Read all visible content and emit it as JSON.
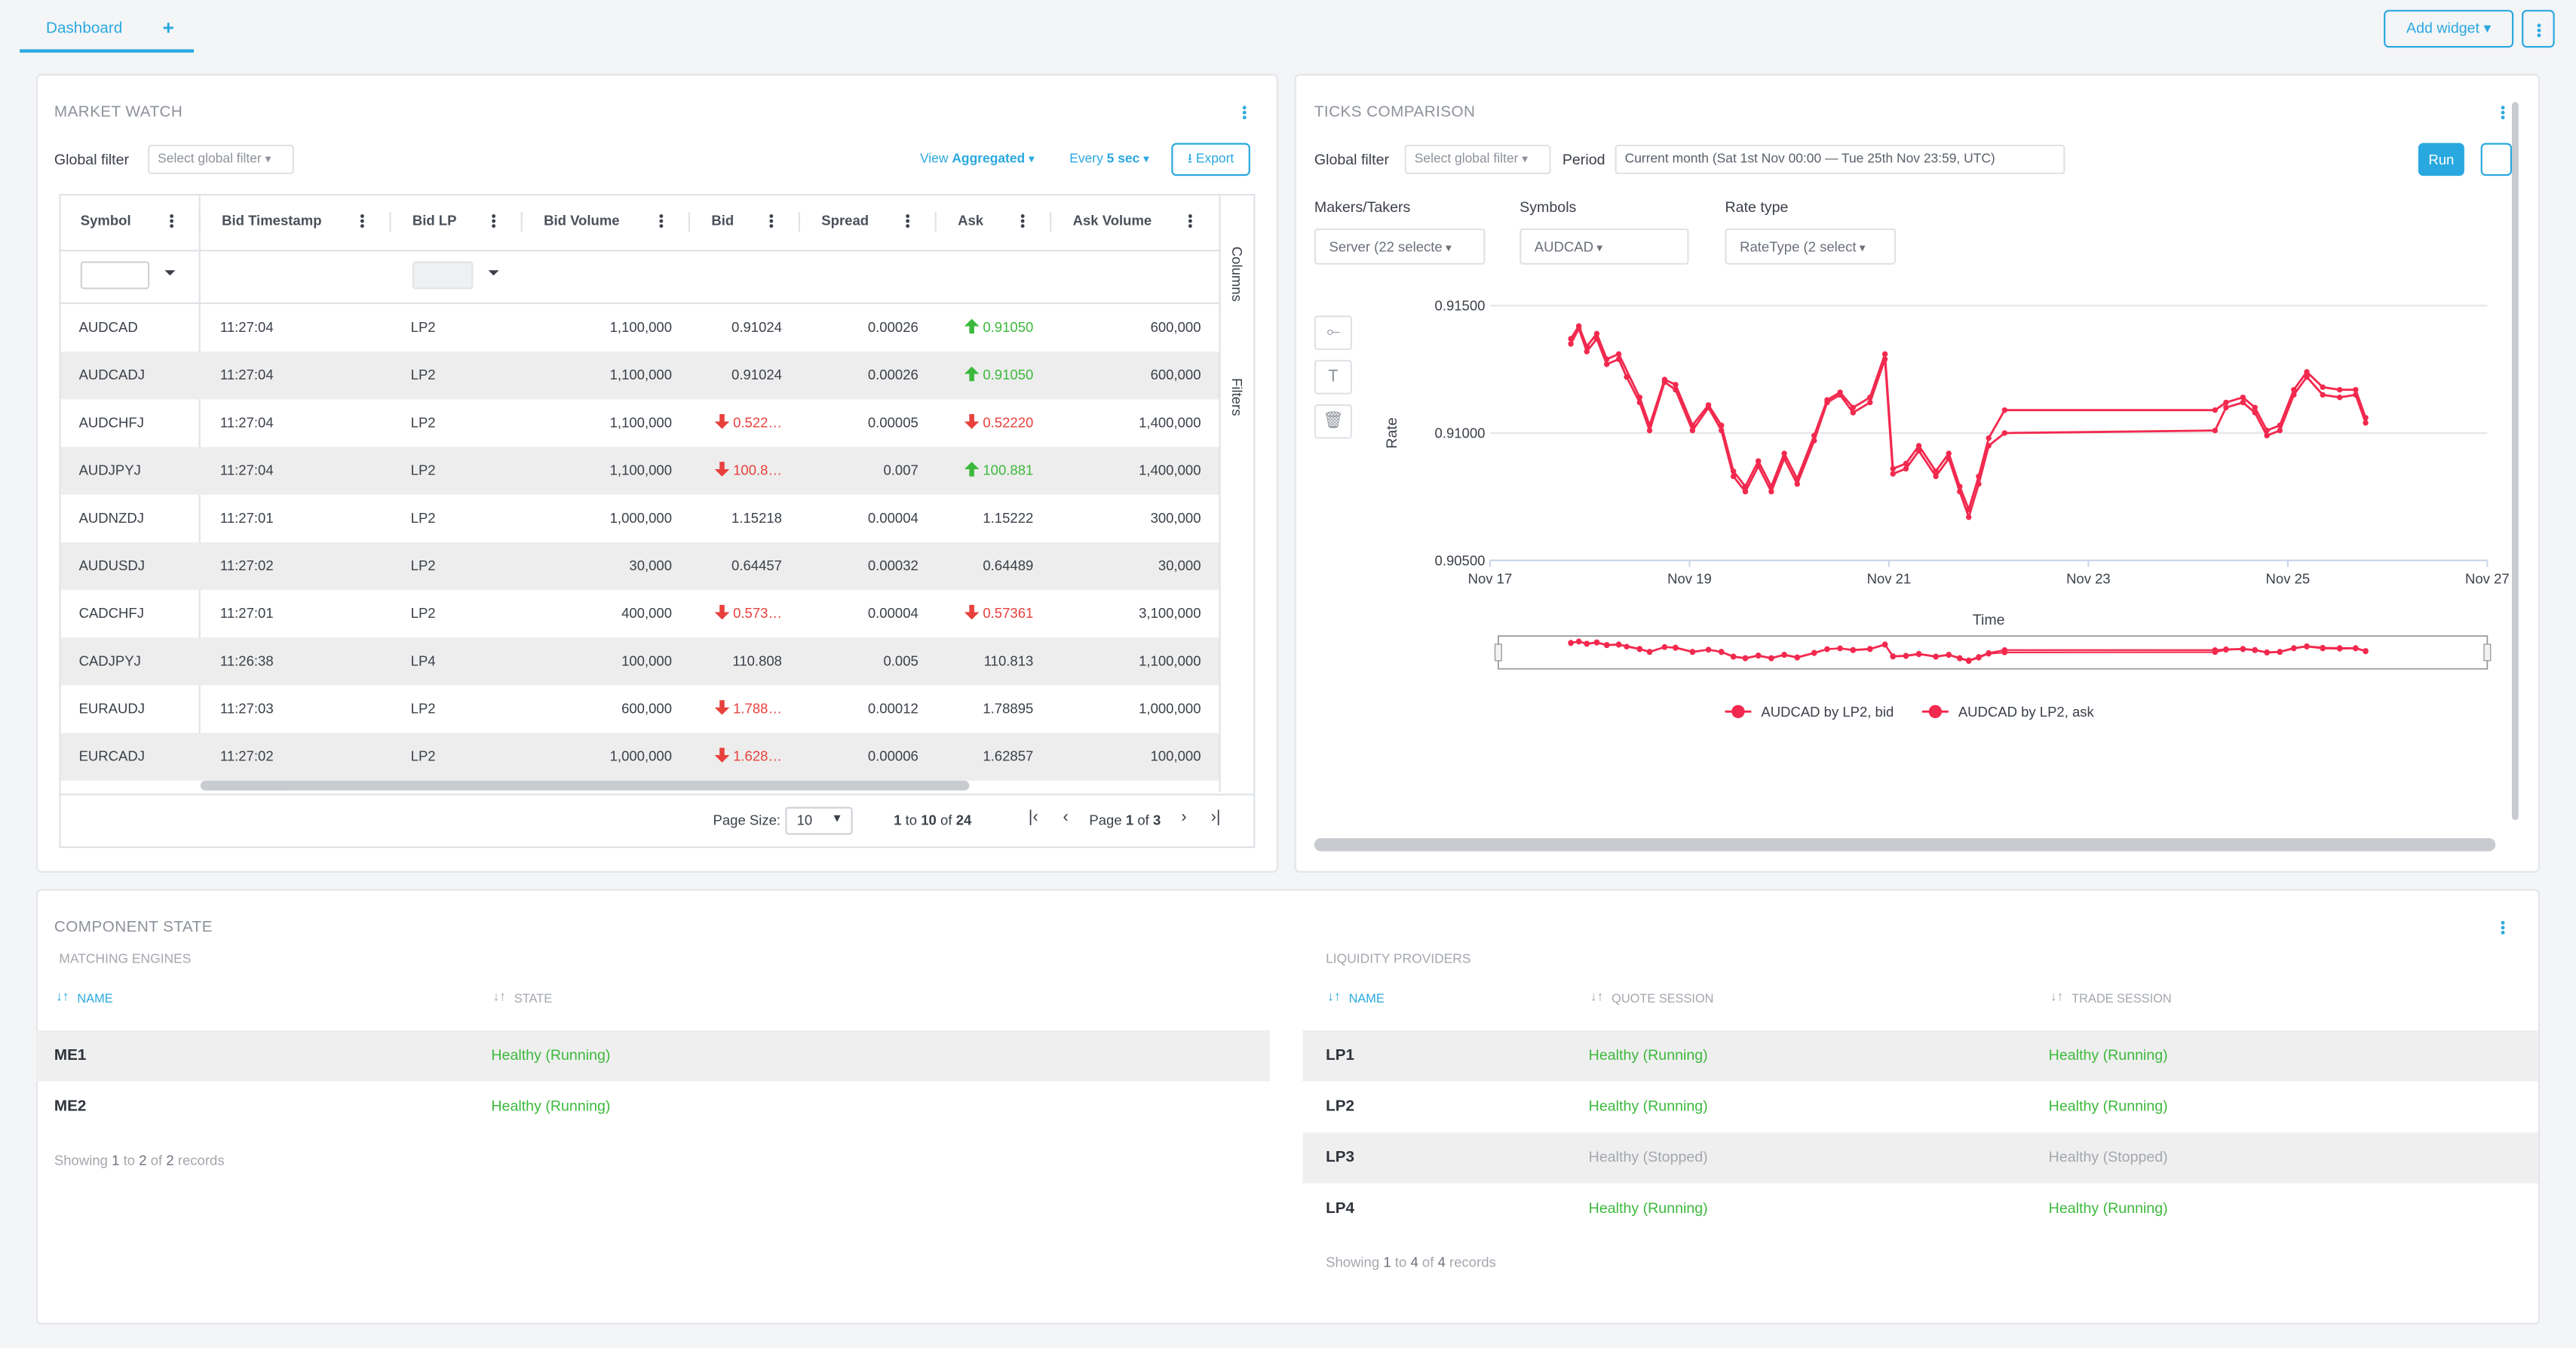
{
  "tabs": {
    "active": "Dashboard",
    "add": "+"
  },
  "toolbar": {
    "add_widget": "Add widget"
  },
  "market_watch": {
    "title": "MARKET WATCH",
    "global_filter_label": "Global filter",
    "global_filter_placeholder": "Select global filter",
    "view_label": "View",
    "view_value": "Aggregated",
    "every_label": "Every",
    "every_value": "5 sec",
    "export": "Export",
    "columns": [
      "Symbol",
      "Bid Timestamp",
      "Bid LP",
      "Bid Volume",
      "Bid",
      "Spread",
      "Ask",
      "Ask Volume"
    ],
    "rows": [
      [
        "AUDCAD",
        "11:27:04",
        "LP2",
        "1,100,000",
        "0.91024",
        "0.00026",
        "0.91050",
        "600,000"
      ],
      [
        "AUDCADJ",
        "11:27:04",
        "LP2",
        "1,100,000",
        "0.91024",
        "0.00026",
        "0.91050",
        "600,000"
      ],
      [
        "AUDCHFJ",
        "11:27:04",
        "LP2",
        "1,100,000",
        "0.522…",
        "0.00005",
        "0.52220",
        "1,400,000"
      ],
      [
        "AUDJPYJ",
        "11:27:04",
        "LP2",
        "1,100,000",
        "100.8…",
        "0.007",
        "100.881",
        "1,400,000"
      ],
      [
        "AUDNZDJ",
        "11:27:01",
        "LP2",
        "1,000,000",
        "1.15218",
        "0.00004",
        "1.15222",
        "300,000"
      ],
      [
        "AUDUSDJ",
        "11:27:02",
        "LP2",
        "30,000",
        "0.64457",
        "0.00032",
        "0.64489",
        "30,000"
      ],
      [
        "CADCHFJ",
        "11:27:01",
        "LP2",
        "400,000",
        "0.573…",
        "0.00004",
        "0.57361",
        "3,100,000"
      ],
      [
        "CADJPYJ",
        "11:26:38",
        "LP4",
        "100,000",
        "110.808",
        "0.005",
        "110.813",
        "1,100,000"
      ],
      [
        "EURAUDJ",
        "11:27:03",
        "LP2",
        "600,000",
        "1.788…",
        "0.00012",
        "1.78895",
        "1,000,000"
      ],
      [
        "EURCADJ",
        "11:27:02",
        "LP2",
        "1,000,000",
        "1.628…",
        "0.00006",
        "1.62857",
        "100,000"
      ]
    ],
    "bid_trend": [
      null,
      null,
      "down",
      "down",
      null,
      null,
      "down",
      null,
      "down",
      "down"
    ],
    "ask_trend": [
      "up",
      "up",
      "down",
      "up",
      null,
      null,
      "down",
      null,
      null,
      null
    ],
    "trend_colors": {
      "up": "#3cb93c",
      "down": "#e8413c"
    },
    "side_panel": [
      "Columns",
      "Filters"
    ],
    "page_size_label": "Page Size:",
    "page_size": "10",
    "range": {
      "start": 1,
      "to": "to",
      "end": 10,
      "of": "of",
      "total": 24
    },
    "page": {
      "label": "Page",
      "current": 1,
      "of": "of",
      "total": 3
    }
  },
  "ticks_comparison": {
    "title": "TICKS COMPARISON",
    "global_filter_label": "Global filter",
    "global_filter_placeholder": "Select global filter",
    "period_label": "Period",
    "period_value": "Current month (Sat 1st Nov 00:00 — Tue 25th Nov 23:59, UTC)",
    "run": "Run",
    "makers_label": "Makers/Takers",
    "makers_value": "Server (22 selecte",
    "symbols_label": "Symbols",
    "symbols_value": "AUDCAD",
    "rate_label": "Rate type",
    "rate_value": "RateType (2 select"
  },
  "chart_data": {
    "type": "line",
    "y_label": "Rate",
    "x_label": "Time",
    "xlim": [
      17,
      27
    ],
    "xticks": [
      {
        "value": 17,
        "label": "Nov 17"
      },
      {
        "value": 19,
        "label": "Nov 19"
      },
      {
        "value": 21,
        "label": "Nov 21"
      },
      {
        "value": 23,
        "label": "Nov 23"
      },
      {
        "value": 25,
        "label": "Nov 25"
      },
      {
        "value": 27,
        "label": "Nov 27"
      }
    ],
    "ylim": [
      0.905,
      0.915
    ],
    "yticks": [
      {
        "value": 0.905,
        "label": "0.90500"
      },
      {
        "value": 0.91,
        "label": "0.91000"
      },
      {
        "value": 0.915,
        "label": "0.91500"
      }
    ],
    "grid": true,
    "series": [
      {
        "name": "AUDCAD by LP2, bid",
        "color": "#f2294e",
        "x": [
          17.81,
          17.89,
          17.97,
          18.07,
          18.17,
          18.29,
          18.37,
          18.5,
          18.6,
          18.75,
          18.86,
          19.03,
          19.19,
          19.32,
          19.44,
          19.56,
          19.69,
          19.82,
          19.95,
          20.08,
          20.25,
          20.38,
          20.51,
          20.64,
          20.81,
          20.96,
          21.04,
          21.17,
          21.3,
          21.47,
          21.6,
          21.71,
          21.8,
          21.9,
          22.0,
          22.16,
          24.27,
          24.38,
          24.55,
          24.67,
          24.79,
          24.92,
          25.06,
          25.19,
          25.35,
          25.52,
          25.68,
          25.78
        ],
        "values": [
          0.9135,
          0.9141,
          0.9132,
          0.9137,
          0.9127,
          0.9129,
          0.9122,
          0.9112,
          0.9101,
          0.912,
          0.9117,
          0.9101,
          0.911,
          0.9101,
          0.9083,
          0.9077,
          0.9087,
          0.9077,
          0.909,
          0.908,
          0.9097,
          0.9112,
          0.9115,
          0.9108,
          0.9112,
          0.9129,
          0.9084,
          0.9086,
          0.9093,
          0.9083,
          0.909,
          0.9077,
          0.9067,
          0.908,
          0.9095,
          0.91,
          0.9101,
          0.911,
          0.9112,
          0.9108,
          0.9099,
          0.9101,
          0.9115,
          0.9122,
          0.9115,
          0.9114,
          0.9115,
          0.9104
        ]
      },
      {
        "name": "AUDCAD by LP2, ask",
        "color": "#f2294e",
        "x": [
          17.81,
          17.89,
          17.97,
          18.07,
          18.17,
          18.29,
          18.5,
          18.6,
          18.75,
          18.86,
          19.03,
          19.19,
          19.32,
          19.44,
          19.56,
          19.69,
          19.82,
          19.95,
          20.08,
          20.25,
          20.38,
          20.51,
          20.64,
          20.81,
          20.96,
          21.04,
          21.17,
          21.3,
          21.47,
          21.6,
          21.71,
          21.8,
          21.9,
          22.0,
          22.16,
          24.27,
          24.38,
          24.55,
          24.67,
          24.79,
          24.92,
          25.06,
          25.19,
          25.35,
          25.52,
          25.68,
          25.78
        ],
        "values": [
          0.9137,
          0.9142,
          0.9134,
          0.9139,
          0.9129,
          0.9131,
          0.9114,
          0.9103,
          0.9121,
          0.9119,
          0.9103,
          0.9111,
          0.9103,
          0.9085,
          0.9079,
          0.9089,
          0.9079,
          0.9092,
          0.9082,
          0.9099,
          0.9113,
          0.9116,
          0.911,
          0.9114,
          0.9131,
          0.9086,
          0.9088,
          0.9095,
          0.9085,
          0.9092,
          0.9079,
          0.907,
          0.9083,
          0.9098,
          0.9109,
          0.9109,
          0.9112,
          0.9114,
          0.911,
          0.9101,
          0.9103,
          0.9117,
          0.9124,
          0.9118,
          0.9117,
          0.9117,
          0.9106
        ]
      }
    ]
  },
  "component_state": {
    "title": "COMPONENT STATE",
    "matching_engines": {
      "title": "MATCHING ENGINES",
      "columns": [
        "NAME",
        "STATE"
      ],
      "rows": [
        [
          "ME1",
          "Healthy (Running)"
        ],
        [
          "ME2",
          "Healthy (Running)"
        ]
      ],
      "row_colors": [
        "#3cb93c",
        "#3cb93c"
      ],
      "footer": {
        "prefix": "Showing",
        "start": 1,
        "to": "to",
        "end": 2,
        "of": "of",
        "total": 2,
        "suffix": "records"
      }
    },
    "liquidity_providers": {
      "title": "LIQUIDITY PROVIDERS",
      "columns": [
        "NAME",
        "QUOTE SESSION",
        "TRADE SESSION"
      ],
      "rows": [
        [
          "LP1",
          "Healthy (Running)",
          "Healthy (Running)"
        ],
        [
          "LP2",
          "Healthy (Running)",
          "Healthy (Running)"
        ],
        [
          "LP3",
          "Healthy (Stopped)",
          "Healthy (Stopped)"
        ],
        [
          "LP4",
          "Healthy (Running)",
          "Healthy (Running)"
        ]
      ],
      "row_colors": [
        "#3cb93c",
        "#3cb93c",
        "#a3a7ad",
        "#3cb93c"
      ],
      "footer": {
        "prefix": "Showing",
        "start": 1,
        "to": "to",
        "end": 4,
        "of": "of",
        "total": 4,
        "suffix": "records"
      }
    }
  }
}
